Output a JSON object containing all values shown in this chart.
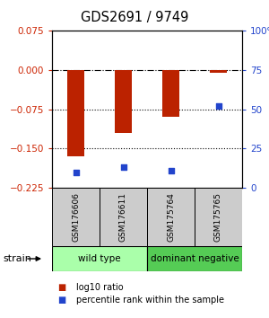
{
  "title": "GDS2691 / 9749",
  "samples": [
    "GSM176606",
    "GSM176611",
    "GSM175764",
    "GSM175765"
  ],
  "log10_ratio": [
    -0.165,
    -0.12,
    -0.09,
    -0.005
  ],
  "percentile_rank": [
    10,
    13,
    11,
    52
  ],
  "ylim_left": [
    -0.225,
    0.075
  ],
  "ylim_right": [
    0,
    100
  ],
  "yticks_left": [
    0.075,
    0,
    -0.075,
    -0.15,
    -0.225
  ],
  "yticks_right": [
    100,
    75,
    50,
    25,
    0
  ],
  "hlines": [
    0,
    -0.075,
    -0.15
  ],
  "hline_styles": [
    "dashdot",
    "dotted",
    "dotted"
  ],
  "bar_color": "#bb2200",
  "dot_color": "#2244cc",
  "groups": [
    {
      "label": "wild type",
      "samples": [
        0,
        1
      ],
      "color": "#aaffaa"
    },
    {
      "label": "dominant negative",
      "samples": [
        2,
        3
      ],
      "color": "#55cc55"
    }
  ],
  "strain_label": "strain",
  "legend_bar_label": "log10 ratio",
  "legend_dot_label": "percentile rank within the sample",
  "left_tick_color": "#cc2200",
  "right_tick_color": "#2244cc",
  "sample_box_color": "#cccccc",
  "bar_width": 0.35
}
